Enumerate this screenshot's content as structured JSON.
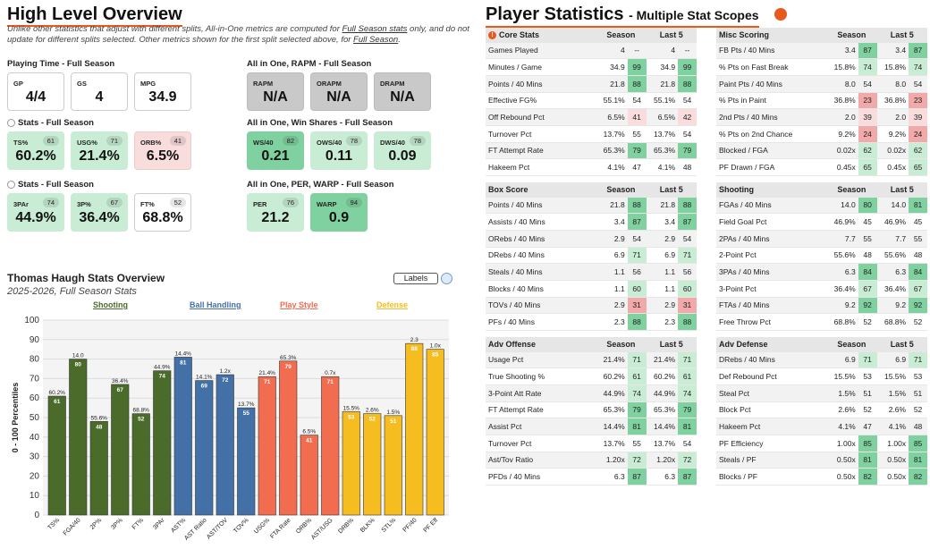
{
  "left": {
    "title": "High Level Overview",
    "note_pre": "Unlike other statistics that adjust with different splits, All-in-One metrics are computed for ",
    "note_link1": "Full Season stats",
    "note_mid": " only, and do not update for different splits selected. Other metrics shown for the first split selected above, for ",
    "note_link2": "Full Season",
    "note_end": ".",
    "playing_time": {
      "label": "Playing Time - Full Season",
      "cards": [
        {
          "lab": "GP",
          "val": "4/4"
        },
        {
          "lab": "GS",
          "val": "4"
        },
        {
          "lab": "MPG",
          "val": "34.9"
        }
      ]
    },
    "rapm": {
      "label": "All in One, RAPM - Full Season",
      "cards": [
        {
          "lab": "RAPM",
          "val": "N/A"
        },
        {
          "lab": "ORAPM",
          "val": "N/A"
        },
        {
          "lab": "DRAPM",
          "val": "N/A"
        }
      ]
    },
    "stats1": {
      "label": "Stats - Full Season",
      "cards": [
        {
          "lab": "TS%",
          "pct": "61",
          "val": "60.2%"
        },
        {
          "lab": "USG%",
          "pct": "71",
          "val": "21.4%"
        },
        {
          "lab": "ORB%",
          "pct": "41",
          "val": "6.5%"
        }
      ]
    },
    "ws": {
      "label": "All in One, Win Shares - Full Season",
      "cards": [
        {
          "lab": "WS/40",
          "pct": "82",
          "val": "0.21"
        },
        {
          "lab": "OWS/40",
          "pct": "78",
          "val": "0.11"
        },
        {
          "lab": "DWS/40",
          "pct": "78",
          "val": "0.09"
        }
      ]
    },
    "stats2": {
      "label": "Stats - Full Season",
      "cards": [
        {
          "lab": "3PAr",
          "pct": "74",
          "val": "44.9%"
        },
        {
          "lab": "3P%",
          "pct": "67",
          "val": "36.4%"
        },
        {
          "lab": "FT%",
          "pct": "52",
          "val": "68.8%"
        }
      ]
    },
    "per": {
      "label": "All in One, PER, WARP - Full Season",
      "cards": [
        {
          "lab": "PER",
          "pct": "76",
          "val": "21.2"
        },
        {
          "lab": "WARP",
          "pct": "94",
          "val": "0.9"
        }
      ]
    }
  },
  "chart_data": {
    "type": "bar",
    "title": "Thomas Haugh Stats Overview",
    "subtitle": "2025-2026, Full Season Stats",
    "ylabel": "0 - 100 Percentiles",
    "ylim": [
      0,
      100
    ],
    "yticks": [
      0,
      10,
      20,
      30,
      40,
      50,
      60,
      70,
      80,
      90,
      100
    ],
    "toggle_label": "Labels",
    "groups": [
      {
        "name": "Shooting",
        "color": "#4a6b2a"
      },
      {
        "name": "Ball Handling",
        "color": "#4470a8"
      },
      {
        "name": "Play Style",
        "color": "#f26c4f"
      },
      {
        "name": "Defense",
        "color": "#f5bd1f"
      }
    ],
    "categories": [
      "TS%",
      "FGA/40",
      "2P%",
      "3P%",
      "FT%",
      "3PAr",
      "AST%",
      "AST Ratio",
      "AST/TOV",
      "TOV%",
      "USG%",
      "FTA Rate",
      "ORB%",
      "AST/USG",
      "DRB%",
      "BLK%",
      "STL%",
      "PF/40",
      "PF Eff"
    ],
    "values": [
      61,
      80,
      48,
      67,
      52,
      74,
      81,
      69,
      72,
      55,
      71,
      79,
      41,
      71,
      53,
      52,
      51,
      88,
      85
    ],
    "raw_labels": [
      "60.2%",
      "14.0",
      "55.6%",
      "36.4%",
      "68.8%",
      "44.9%",
      "14.4%",
      "14.1%",
      "1.2x",
      "13.7%",
      "21.4%",
      "65.3%",
      "6.5%",
      "0.7x",
      "15.5%",
      "2.6%",
      "1.5%",
      "2.3",
      "1.0x"
    ],
    "group_index": [
      0,
      0,
      0,
      0,
      0,
      0,
      1,
      1,
      1,
      1,
      2,
      2,
      2,
      2,
      3,
      3,
      3,
      3,
      3
    ]
  },
  "right": {
    "title": "Player Statistics",
    "subtitle": "- Multiple Stat Scopes",
    "col_season": "Season",
    "col_last5": "Last 5",
    "tables": [
      {
        "name": "Core Stats",
        "rows": [
          [
            "Games Played",
            "4",
            "--",
            "4",
            "--"
          ],
          [
            "Minutes / Game",
            "34.9",
            "99",
            "34.9",
            "99"
          ],
          [
            "Points / 40 Mins",
            "21.8",
            "88",
            "21.8",
            "88"
          ],
          [
            "Effective FG%",
            "55.1%",
            "54",
            "55.1%",
            "54"
          ],
          [
            "Off Rebound Pct",
            "6.5%",
            "41",
            "6.5%",
            "42"
          ],
          [
            "Turnover Pct",
            "13.7%",
            "55",
            "13.7%",
            "54"
          ],
          [
            "FT Attempt Rate",
            "65.3%",
            "79",
            "65.3%",
            "79"
          ],
          [
            "Hakeem Pct",
            "4.1%",
            "47",
            "4.1%",
            "48"
          ]
        ]
      },
      {
        "name": "Misc Scoring",
        "rows": [
          [
            "FB Pts / 40 Mins",
            "3.4",
            "87",
            "3.4",
            "87"
          ],
          [
            "% Pts on Fast Break",
            "15.8%",
            "74",
            "15.8%",
            "74"
          ],
          [
            "Paint Pts / 40 Mins",
            "8.0",
            "54",
            "8.0",
            "54"
          ],
          [
            "% Pts in Paint",
            "36.8%",
            "23",
            "36.8%",
            "23"
          ],
          [
            "2nd Pts / 40 Mins",
            "2.0",
            "39",
            "2.0",
            "39"
          ],
          [
            "% Pts on 2nd Chance",
            "9.2%",
            "24",
            "9.2%",
            "24"
          ],
          [
            "Blocked / FGA",
            "0.02x",
            "62",
            "0.02x",
            "62"
          ],
          [
            "PF Drawn / FGA",
            "0.45x",
            "65",
            "0.45x",
            "65"
          ]
        ]
      },
      {
        "name": "Box Score",
        "rows": [
          [
            "Points / 40 Mins",
            "21.8",
            "88",
            "21.8",
            "88"
          ],
          [
            "Assists / 40 Mins",
            "3.4",
            "87",
            "3.4",
            "87"
          ],
          [
            "ORebs / 40 Mins",
            "2.9",
            "54",
            "2.9",
            "54"
          ],
          [
            "DRebs / 40 Mins",
            "6.9",
            "71",
            "6.9",
            "71"
          ],
          [
            "Steals / 40 Mins",
            "1.1",
            "56",
            "1.1",
            "56"
          ],
          [
            "Blocks / 40 Mins",
            "1.1",
            "60",
            "1.1",
            "60"
          ],
          [
            "TOVs / 40 Mins",
            "2.9",
            "31",
            "2.9",
            "31"
          ],
          [
            "PFs / 40 Mins",
            "2.3",
            "88",
            "2.3",
            "88"
          ]
        ]
      },
      {
        "name": "Shooting",
        "rows": [
          [
            "FGAs / 40 Mins",
            "14.0",
            "80",
            "14.0",
            "81"
          ],
          [
            "Field Goal Pct",
            "46.9%",
            "45",
            "46.9%",
            "45"
          ],
          [
            "2PAs / 40 Mins",
            "7.7",
            "55",
            "7.7",
            "55"
          ],
          [
            "2-Point Pct",
            "55.6%",
            "48",
            "55.6%",
            "48"
          ],
          [
            "3PAs / 40 Mins",
            "6.3",
            "84",
            "6.3",
            "84"
          ],
          [
            "3-Point Pct",
            "36.4%",
            "67",
            "36.4%",
            "67"
          ],
          [
            "FTAs / 40 Mins",
            "9.2",
            "92",
            "9.2",
            "92"
          ],
          [
            "Free Throw Pct",
            "68.8%",
            "52",
            "68.8%",
            "52"
          ]
        ]
      },
      {
        "name": "Adv Offense",
        "rows": [
          [
            "Usage Pct",
            "21.4%",
            "71",
            "21.4%",
            "71"
          ],
          [
            "True Shooting %",
            "60.2%",
            "61",
            "60.2%",
            "61"
          ],
          [
            "3-Point Att Rate",
            "44.9%",
            "74",
            "44.9%",
            "74"
          ],
          [
            "FT Attempt Rate",
            "65.3%",
            "79",
            "65.3%",
            "79"
          ],
          [
            "Assist Pct",
            "14.4%",
            "81",
            "14.4%",
            "81"
          ],
          [
            "Turnover Pct",
            "13.7%",
            "55",
            "13.7%",
            "54"
          ],
          [
            "Ast/Tov Ratio",
            "1.20x",
            "72",
            "1.20x",
            "72"
          ],
          [
            "PFDs / 40 Mins",
            "6.3",
            "87",
            "6.3",
            "87"
          ]
        ]
      },
      {
        "name": "Adv Defense",
        "rows": [
          [
            "DRebs / 40 Mins",
            "6.9",
            "71",
            "6.9",
            "71"
          ],
          [
            "Def Rebound Pct",
            "15.5%",
            "53",
            "15.5%",
            "53"
          ],
          [
            "Steal Pct",
            "1.5%",
            "51",
            "1.5%",
            "51"
          ],
          [
            "Block Pct",
            "2.6%",
            "52",
            "2.6%",
            "52"
          ],
          [
            "Hakeem Pct",
            "4.1%",
            "47",
            "4.1%",
            "48"
          ],
          [
            "PF Efficiency",
            "1.00x",
            "85",
            "1.00x",
            "85"
          ],
          [
            "Steals / PF",
            "0.50x",
            "81",
            "0.50x",
            "81"
          ],
          [
            "Blocks / PF",
            "0.50x",
            "82",
            "0.50x",
            "82"
          ]
        ]
      }
    ]
  }
}
